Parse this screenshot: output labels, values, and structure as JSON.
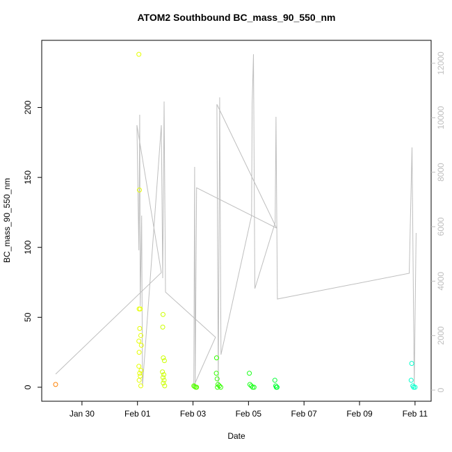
{
  "chart_data": {
    "type": "scatter",
    "title": "ATOM2 Southbound BC_mass_90_550_nm",
    "x_label": "Date",
    "y_label": "BC_mass_90_550_nm",
    "xlim": [
      28.55,
      42.58
    ],
    "ylim": [
      -10,
      248
    ],
    "y2lim": [
      -409,
      12842
    ],
    "xticks": [
      {
        "value": 30,
        "label": "Jan 30"
      },
      {
        "value": 32,
        "label": "Feb 01"
      },
      {
        "value": 34,
        "label": "Feb 03"
      },
      {
        "value": 36,
        "label": "Feb 05"
      },
      {
        "value": 38,
        "label": "Feb 07"
      },
      {
        "value": 40,
        "label": "Feb 09"
      },
      {
        "value": 42,
        "label": "Feb 11"
      }
    ],
    "yticks": [
      0,
      50,
      100,
      150,
      200
    ],
    "y2ticks": [
      0,
      2000,
      4000,
      6000,
      8000,
      10000,
      12000
    ],
    "y2_color": "#bebebe",
    "points": {
      "x": [
        29.05,
        32.05,
        32.07,
        32.06,
        32.1,
        32.08,
        32.12,
        32.05,
        32.14,
        32.06,
        32.05,
        32.13,
        32.08,
        32.1,
        32.06,
        32.12,
        32.92,
        32.91,
        32.93,
        32.97,
        32.9,
        32.95,
        32.92,
        32.96,
        32.93,
        32.98,
        34.03,
        34.06,
        34.1,
        34.13,
        34.85,
        34.84,
        34.87,
        34.9,
        34.95,
        34.88,
        35.0,
        36.03,
        36.05,
        36.1,
        36.15,
        36.2,
        36.95,
        36.98,
        37.0,
        37.03,
        41.88,
        41.86,
        41.92,
        41.95,
        42.0
      ],
      "y": [
        2,
        238,
        141,
        56,
        56,
        42,
        37,
        33,
        30,
        25,
        15,
        12,
        10,
        8,
        5,
        1,
        52,
        43,
        21,
        19,
        11,
        9,
        7,
        5,
        3,
        1,
        1,
        0.5,
        0,
        0,
        21,
        10,
        6,
        2,
        1,
        0,
        0,
        10,
        2,
        1,
        0,
        0,
        5,
        1,
        0,
        0,
        17,
        5,
        1,
        0,
        0
      ],
      "colors": [
        "#ff8000",
        "#e6ff00",
        "#e6ff00",
        "#e6ff00",
        "#e6ff00",
        "#e6ff00",
        "#e6ff00",
        "#e6ff00",
        "#e6ff00",
        "#e6ff00",
        "#e6ff00",
        "#e6ff00",
        "#e6ff00",
        "#e6ff00",
        "#e6ff00",
        "#e6ff00",
        "#ccff00",
        "#ccff00",
        "#ccff00",
        "#ccff00",
        "#ccff00",
        "#ccff00",
        "#ccff00",
        "#ccff00",
        "#ccff00",
        "#ccff00",
        "#55ff00",
        "#55ff00",
        "#55ff00",
        "#55ff00",
        "#33ff00",
        "#33ff00",
        "#33ff00",
        "#33ff00",
        "#33ff00",
        "#33ff00",
        "#33ff00",
        "#1aff1a",
        "#1aff1a",
        "#1aff1a",
        "#1aff1a",
        "#1aff1a",
        "#00ff33",
        "#00ff33",
        "#00ff33",
        "#00ff33",
        "#00ffcc",
        "#00ffcc",
        "#00ffcc",
        "#00ffcc",
        "#00ffcc"
      ]
    },
    "line": {
      "color": "#bebebe",
      "axis": "y2",
      "x": [
        29.05,
        32.86,
        31.98,
        32.05,
        32.08,
        32.1,
        32.15,
        32.18,
        32.86,
        32.91,
        32.96,
        33.01,
        34.81,
        34.03,
        34.06,
        34.08,
        34.13,
        37.01,
        34.86,
        34.91,
        34.96,
        35.01,
        36.11,
        36.13,
        36.18,
        36.23,
        36.96,
        36.99,
        37.04,
        41.79,
        41.89,
        41.97,
        42.04
      ],
      "y": [
        587,
        4315,
        9727,
        5132,
        10110,
        3089,
        6408,
        153,
        9727,
        4110,
        10595,
        3600,
        1940,
        153,
        8195,
        153,
        7429,
        5948,
        10493,
        153,
        10748,
        1302,
        6408,
        10493,
        12331,
        3727,
        6153,
        10033,
        3344,
        4289,
        8910,
        153,
        5770
      ]
    }
  }
}
